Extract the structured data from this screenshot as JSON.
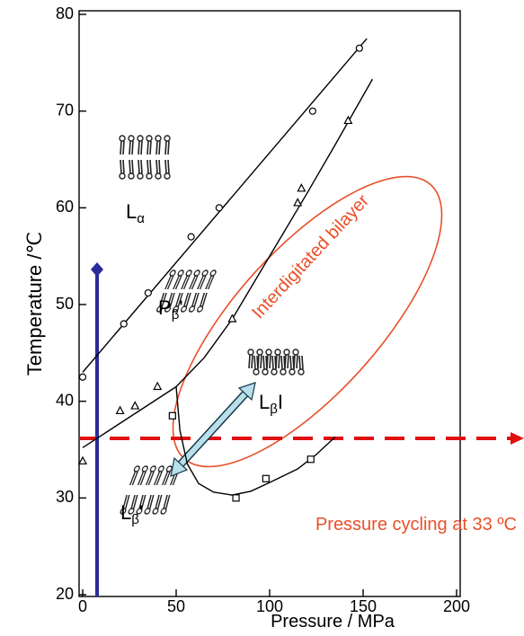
{
  "chart_data": {
    "type": "scatter",
    "xlabel": "Pressure / MPa",
    "ylabel": "Temperature /℃",
    "xlim": [
      0,
      200
    ],
    "ylim": [
      20,
      80
    ],
    "xticks": [
      0,
      50,
      100,
      150,
      200
    ],
    "yticks": [
      20,
      30,
      40,
      50,
      60,
      70,
      80
    ],
    "series": [
      {
        "marker": "circle",
        "color": "#000000",
        "x": [
          0,
          22,
          35,
          58,
          73,
          123,
          148
        ],
        "y": [
          42.5,
          48,
          51.2,
          57,
          60,
          70,
          76.5
        ]
      },
      {
        "marker": "triangle",
        "color": "#000000",
        "x": [
          0,
          20,
          28,
          40,
          80,
          115,
          117,
          142
        ],
        "y": [
          33.8,
          39,
          39.5,
          41.5,
          48.5,
          60.5,
          62,
          69
        ]
      },
      {
        "marker": "square",
        "color": "#000000",
        "x": [
          48,
          82,
          98,
          122
        ],
        "y": [
          38.5,
          30,
          32,
          34
        ]
      }
    ],
    "curves": [
      {
        "x": [
          0,
          152
        ],
        "y": [
          43,
          77.5
        ]
      },
      {
        "x": [
          0,
          50
        ],
        "y": [
          35.2,
          41.5
        ]
      },
      {
        "x": [
          50,
          65,
          80,
          100,
          120,
          135,
          155
        ],
        "y": [
          41.5,
          44.5,
          48.5,
          55,
          61.5,
          66.5,
          73.3
        ]
      },
      {
        "x": [
          50,
          52,
          56,
          62,
          70,
          80,
          90,
          100,
          115,
          125,
          135
        ],
        "y": [
          41.5,
          37,
          33.5,
          31.5,
          30.6,
          30.3,
          30.7,
          31.6,
          33,
          34.5,
          36.3
        ]
      }
    ],
    "phase_labels": [
      {
        "main": "L",
        "sub": "α"
      },
      {
        "main": "P",
        "sub": "β",
        "suffix": "'"
      },
      {
        "main": "L",
        "sub": "β",
        "suffix": "I"
      },
      {
        "main": "L",
        "sub": "β",
        "suffix": "'"
      }
    ],
    "annotations": [
      "Interdigitated bilayer",
      "Pressure cycling at 33 ºC"
    ]
  }
}
